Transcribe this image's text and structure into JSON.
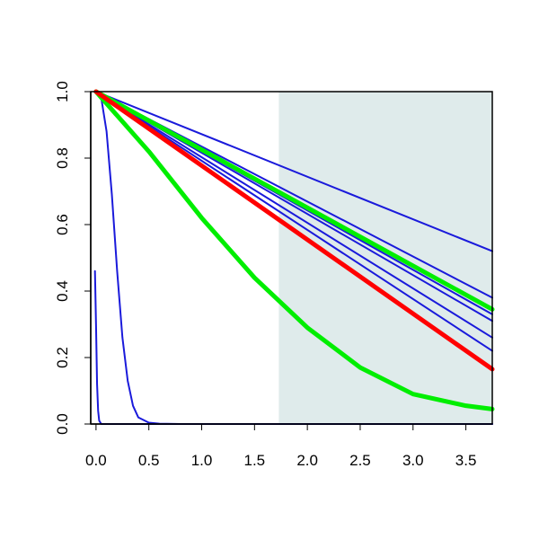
{
  "chart_data": {
    "type": "line",
    "title": "",
    "xlabel": "",
    "ylabel": "",
    "xlim": [
      -0.05,
      3.75
    ],
    "ylim": [
      0.0,
      1.0
    ],
    "grid": false,
    "legend": "none",
    "x_ticks": [
      "0.0",
      "0.5",
      "1.0",
      "1.5",
      "2.0",
      "2.5",
      "3.0",
      "3.5"
    ],
    "y_ticks": [
      "0.0",
      "0.2",
      "0.4",
      "0.6",
      "0.8",
      "1.0"
    ],
    "shaded_region": {
      "x_from": 1.73,
      "x_to": 3.75,
      "color": "#dfebeb"
    },
    "series": [
      {
        "color": "#1a1adb",
        "width": 2,
        "points": [
          [
            0,
            1
          ],
          [
            3.75,
            0.52
          ]
        ]
      },
      {
        "color": "#1a1adb",
        "width": 2,
        "points": [
          [
            0,
            1
          ],
          [
            3.75,
            0.38
          ]
        ]
      },
      {
        "color": "#1a1adb",
        "width": 2,
        "points": [
          [
            0,
            1
          ],
          [
            3.75,
            0.33
          ]
        ]
      },
      {
        "color": "#1a1adb",
        "width": 2,
        "points": [
          [
            0,
            1
          ],
          [
            3.75,
            0.31
          ]
        ]
      },
      {
        "color": "#1a1adb",
        "width": 2,
        "points": [
          [
            0,
            1
          ],
          [
            3.75,
            0.26
          ]
        ]
      },
      {
        "color": "#1a1adb",
        "width": 2,
        "points": [
          [
            0,
            1
          ],
          [
            3.75,
            0.22
          ]
        ]
      },
      {
        "color": "#1a1adb",
        "width": 2,
        "points": [
          [
            0,
            1
          ],
          [
            0.05,
            0.98
          ],
          [
            0.1,
            0.88
          ],
          [
            0.15,
            0.69
          ],
          [
            0.2,
            0.46
          ],
          [
            0.25,
            0.26
          ],
          [
            0.3,
            0.13
          ],
          [
            0.35,
            0.055
          ],
          [
            0.4,
            0.02
          ],
          [
            0.5,
            0.004
          ],
          [
            0.6,
            0.001
          ],
          [
            0.8,
            0.0
          ],
          [
            3.75,
            0.0
          ]
        ]
      },
      {
        "color": "#1a1adb",
        "width": 2,
        "points": [
          [
            -0.01,
            0.46
          ],
          [
            0.0,
            0.3
          ],
          [
            0.01,
            0.12
          ],
          [
            0.02,
            0.04
          ],
          [
            0.03,
            0.01
          ],
          [
            0.05,
            0.0
          ],
          [
            3.75,
            0.0
          ]
        ]
      },
      {
        "color": "#00ee00",
        "width": 5,
        "points": [
          [
            0,
            1
          ],
          [
            3.75,
            0.345
          ]
        ]
      },
      {
        "color": "#00ee00",
        "width": 5,
        "points": [
          [
            0,
            1
          ],
          [
            0.5,
            0.82
          ],
          [
            1.0,
            0.62
          ],
          [
            1.5,
            0.44
          ],
          [
            2.0,
            0.29
          ],
          [
            2.5,
            0.17
          ],
          [
            3.0,
            0.09
          ],
          [
            3.5,
            0.055
          ],
          [
            3.75,
            0.045
          ]
        ]
      },
      {
        "color": "#ff0000",
        "width": 5,
        "points": [
          [
            0,
            1
          ],
          [
            3.75,
            0.165
          ]
        ]
      }
    ]
  }
}
